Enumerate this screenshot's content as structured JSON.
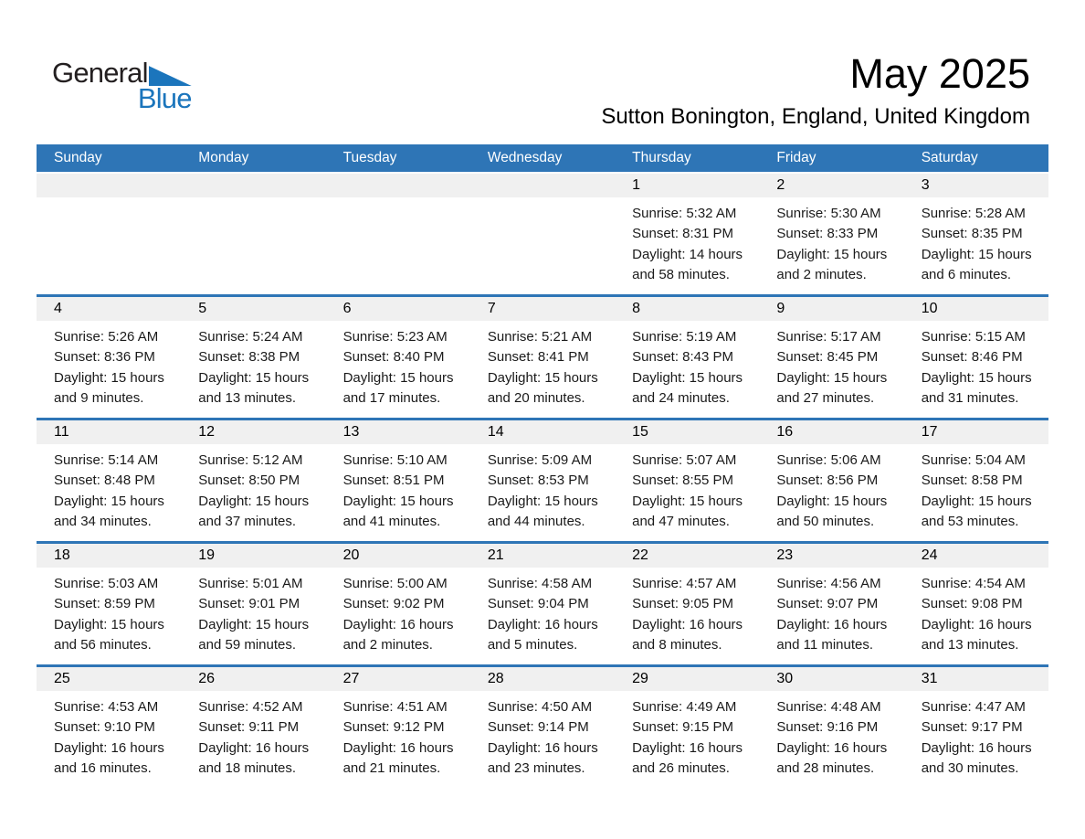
{
  "logo": {
    "part1": "General",
    "part2": "Blue"
  },
  "header": {
    "title": "May 2025",
    "subtitle": "Sutton Bonington, England, United Kingdom"
  },
  "colors": {
    "accent_blue": "#2E75B6",
    "logo_blue": "#1B75BC",
    "band_gray": "#F0F0F0"
  },
  "weekdays": [
    "Sunday",
    "Monday",
    "Tuesday",
    "Wednesday",
    "Thursday",
    "Friday",
    "Saturday"
  ],
  "weeks": [
    [
      null,
      null,
      null,
      null,
      {
        "num": "1",
        "lines": [
          "Sunrise: 5:32 AM",
          "Sunset: 8:31 PM",
          "Daylight: 14 hours",
          "and 58 minutes."
        ]
      },
      {
        "num": "2",
        "lines": [
          "Sunrise: 5:30 AM",
          "Sunset: 8:33 PM",
          "Daylight: 15 hours",
          "and 2 minutes."
        ]
      },
      {
        "num": "3",
        "lines": [
          "Sunrise: 5:28 AM",
          "Sunset: 8:35 PM",
          "Daylight: 15 hours",
          "and 6 minutes."
        ]
      }
    ],
    [
      {
        "num": "4",
        "lines": [
          "Sunrise: 5:26 AM",
          "Sunset: 8:36 PM",
          "Daylight: 15 hours",
          "and 9 minutes."
        ]
      },
      {
        "num": "5",
        "lines": [
          "Sunrise: 5:24 AM",
          "Sunset: 8:38 PM",
          "Daylight: 15 hours",
          "and 13 minutes."
        ]
      },
      {
        "num": "6",
        "lines": [
          "Sunrise: 5:23 AM",
          "Sunset: 8:40 PM",
          "Daylight: 15 hours",
          "and 17 minutes."
        ]
      },
      {
        "num": "7",
        "lines": [
          "Sunrise: 5:21 AM",
          "Sunset: 8:41 PM",
          "Daylight: 15 hours",
          "and 20 minutes."
        ]
      },
      {
        "num": "8",
        "lines": [
          "Sunrise: 5:19 AM",
          "Sunset: 8:43 PM",
          "Daylight: 15 hours",
          "and 24 minutes."
        ]
      },
      {
        "num": "9",
        "lines": [
          "Sunrise: 5:17 AM",
          "Sunset: 8:45 PM",
          "Daylight: 15 hours",
          "and 27 minutes."
        ]
      },
      {
        "num": "10",
        "lines": [
          "Sunrise: 5:15 AM",
          "Sunset: 8:46 PM",
          "Daylight: 15 hours",
          "and 31 minutes."
        ]
      }
    ],
    [
      {
        "num": "11",
        "lines": [
          "Sunrise: 5:14 AM",
          "Sunset: 8:48 PM",
          "Daylight: 15 hours",
          "and 34 minutes."
        ]
      },
      {
        "num": "12",
        "lines": [
          "Sunrise: 5:12 AM",
          "Sunset: 8:50 PM",
          "Daylight: 15 hours",
          "and 37 minutes."
        ]
      },
      {
        "num": "13",
        "lines": [
          "Sunrise: 5:10 AM",
          "Sunset: 8:51 PM",
          "Daylight: 15 hours",
          "and 41 minutes."
        ]
      },
      {
        "num": "14",
        "lines": [
          "Sunrise: 5:09 AM",
          "Sunset: 8:53 PM",
          "Daylight: 15 hours",
          "and 44 minutes."
        ]
      },
      {
        "num": "15",
        "lines": [
          "Sunrise: 5:07 AM",
          "Sunset: 8:55 PM",
          "Daylight: 15 hours",
          "and 47 minutes."
        ]
      },
      {
        "num": "16",
        "lines": [
          "Sunrise: 5:06 AM",
          "Sunset: 8:56 PM",
          "Daylight: 15 hours",
          "and 50 minutes."
        ]
      },
      {
        "num": "17",
        "lines": [
          "Sunrise: 5:04 AM",
          "Sunset: 8:58 PM",
          "Daylight: 15 hours",
          "and 53 minutes."
        ]
      }
    ],
    [
      {
        "num": "18",
        "lines": [
          "Sunrise: 5:03 AM",
          "Sunset: 8:59 PM",
          "Daylight: 15 hours",
          "and 56 minutes."
        ]
      },
      {
        "num": "19",
        "lines": [
          "Sunrise: 5:01 AM",
          "Sunset: 9:01 PM",
          "Daylight: 15 hours",
          "and 59 minutes."
        ]
      },
      {
        "num": "20",
        "lines": [
          "Sunrise: 5:00 AM",
          "Sunset: 9:02 PM",
          "Daylight: 16 hours",
          "and 2 minutes."
        ]
      },
      {
        "num": "21",
        "lines": [
          "Sunrise: 4:58 AM",
          "Sunset: 9:04 PM",
          "Daylight: 16 hours",
          "and 5 minutes."
        ]
      },
      {
        "num": "22",
        "lines": [
          "Sunrise: 4:57 AM",
          "Sunset: 9:05 PM",
          "Daylight: 16 hours",
          "and 8 minutes."
        ]
      },
      {
        "num": "23",
        "lines": [
          "Sunrise: 4:56 AM",
          "Sunset: 9:07 PM",
          "Daylight: 16 hours",
          "and 11 minutes."
        ]
      },
      {
        "num": "24",
        "lines": [
          "Sunrise: 4:54 AM",
          "Sunset: 9:08 PM",
          "Daylight: 16 hours",
          "and 13 minutes."
        ]
      }
    ],
    [
      {
        "num": "25",
        "lines": [
          "Sunrise: 4:53 AM",
          "Sunset: 9:10 PM",
          "Daylight: 16 hours",
          "and 16 minutes."
        ]
      },
      {
        "num": "26",
        "lines": [
          "Sunrise: 4:52 AM",
          "Sunset: 9:11 PM",
          "Daylight: 16 hours",
          "and 18 minutes."
        ]
      },
      {
        "num": "27",
        "lines": [
          "Sunrise: 4:51 AM",
          "Sunset: 9:12 PM",
          "Daylight: 16 hours",
          "and 21 minutes."
        ]
      },
      {
        "num": "28",
        "lines": [
          "Sunrise: 4:50 AM",
          "Sunset: 9:14 PM",
          "Daylight: 16 hours",
          "and 23 minutes."
        ]
      },
      {
        "num": "29",
        "lines": [
          "Sunrise: 4:49 AM",
          "Sunset: 9:15 PM",
          "Daylight: 16 hours",
          "and 26 minutes."
        ]
      },
      {
        "num": "30",
        "lines": [
          "Sunrise: 4:48 AM",
          "Sunset: 9:16 PM",
          "Daylight: 16 hours",
          "and 28 minutes."
        ]
      },
      {
        "num": "31",
        "lines": [
          "Sunrise: 4:47 AM",
          "Sunset: 9:17 PM",
          "Daylight: 16 hours",
          "and 30 minutes."
        ]
      }
    ]
  ]
}
